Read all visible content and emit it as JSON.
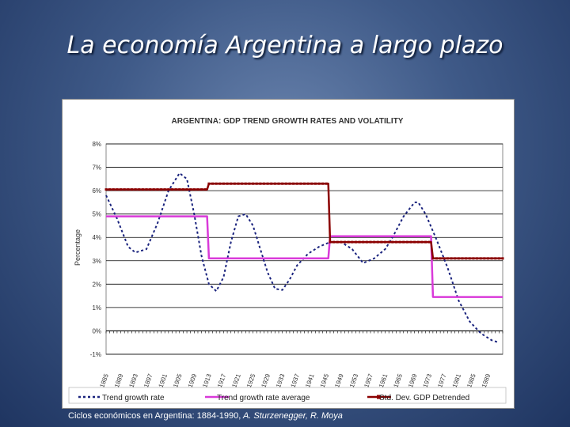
{
  "slide": {
    "title": "La economía Argentina a largo plazo",
    "caption_main": "Ciclos económicos en Argentina: 1884-1990,",
    "caption_author": " A. Sturzenegger, R. Moya"
  },
  "chart_data": {
    "type": "line",
    "title": "ARGENTINA: GDP TREND GROWTH RATES AND VOLATILITY",
    "xlabel": "",
    "ylabel": "Percentage",
    "xlim": [
      1885,
      1993
    ],
    "ylim": [
      -1,
      8
    ],
    "yticks": [
      -1,
      0,
      1,
      2,
      3,
      4,
      5,
      6,
      7,
      8
    ],
    "ytick_labels": [
      "-1%",
      "0%",
      "1%",
      "2%",
      "3%",
      "4%",
      "5%",
      "6%",
      "7%",
      "8%"
    ],
    "xticks": [
      1885,
      1889,
      1893,
      1897,
      1901,
      1905,
      1909,
      1913,
      1917,
      1921,
      1925,
      1929,
      1933,
      1937,
      1941,
      1945,
      1949,
      1953,
      1957,
      1961,
      1965,
      1969,
      1973,
      1977,
      1981,
      1985,
      1989
    ],
    "grid": true,
    "legend_position": "bottom",
    "series": [
      {
        "name": "Trend growth rate",
        "style": "dashed",
        "color": "#1a237e",
        "x": [
          1885,
          1888,
          1891,
          1893,
          1896,
          1899,
          1902,
          1905,
          1907,
          1909,
          1911,
          1913,
          1915,
          1917,
          1919,
          1921,
          1923,
          1925,
          1927,
          1929,
          1931,
          1933,
          1935,
          1937,
          1940,
          1943,
          1946,
          1949,
          1952,
          1955,
          1958,
          1961,
          1963,
          1966,
          1969,
          1970,
          1972,
          1975,
          1978,
          1981,
          1984,
          1987,
          1990,
          1992
        ],
        "y": [
          5.8,
          4.8,
          3.6,
          3.35,
          3.5,
          4.6,
          6.0,
          6.75,
          6.5,
          5.0,
          3.2,
          2.0,
          1.7,
          2.3,
          3.8,
          4.9,
          5.0,
          4.5,
          3.5,
          2.5,
          1.8,
          1.75,
          2.2,
          2.8,
          3.3,
          3.6,
          3.8,
          3.8,
          3.5,
          2.9,
          3.1,
          3.5,
          4.0,
          4.9,
          5.5,
          5.5,
          5.0,
          3.9,
          2.7,
          1.3,
          0.4,
          -0.1,
          -0.4,
          -0.5
        ]
      },
      {
        "name": "Trend growth rate average",
        "style": "solid",
        "color": "#d93ad9",
        "x": [
          1885,
          1912.5,
          1913,
          1945.5,
          1946,
          1973.5,
          1974,
          1993
        ],
        "y": [
          4.9,
          4.9,
          3.1,
          3.1,
          4.05,
          4.05,
          1.45,
          1.45
        ]
      },
      {
        "name": "Std. Dev. GDP Detrended",
        "style": "solid-markers",
        "color": "#8b0000",
        "x": [
          1885,
          1912.5,
          1913,
          1945.5,
          1946,
          1973.5,
          1974,
          1993
        ],
        "y": [
          6.05,
          6.05,
          6.3,
          6.3,
          3.8,
          3.8,
          3.1,
          3.1
        ]
      }
    ]
  }
}
